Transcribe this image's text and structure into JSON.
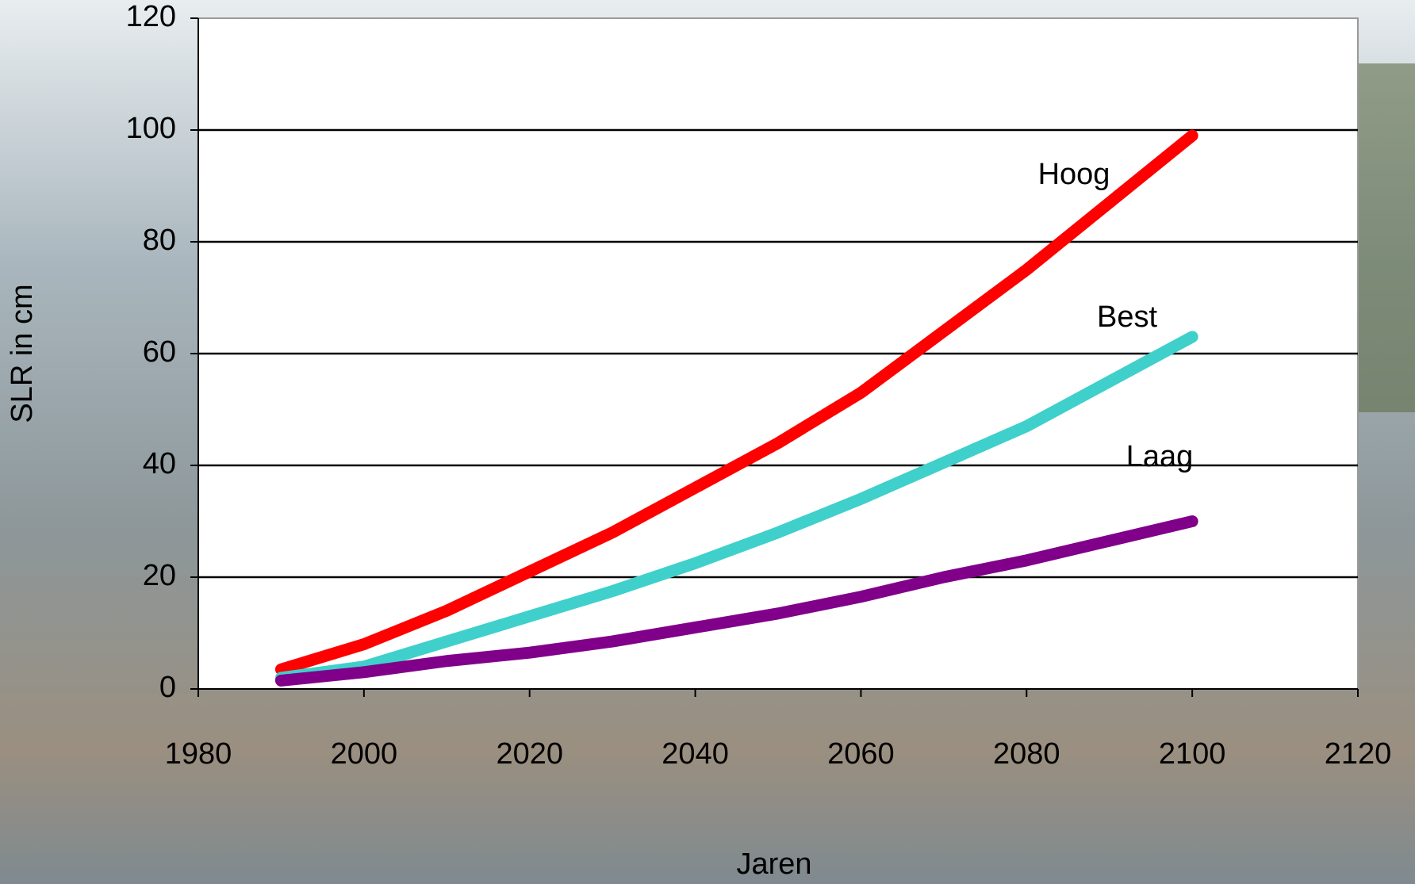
{
  "chart_data": {
    "type": "line",
    "x_label": "Jaren",
    "y_label": "SLR in cm",
    "x": [
      1990,
      2000,
      2010,
      2020,
      2030,
      2040,
      2050,
      2060,
      2070,
      2080,
      2090,
      2100
    ],
    "series": [
      {
        "name": "Hoog",
        "color": "#ff0000",
        "values": [
          3.5,
          8,
          14,
          21,
          28,
          36,
          44,
          53,
          64,
          75,
          87,
          99
        ]
      },
      {
        "name": "Best",
        "color": "#3fd0cb",
        "values": [
          2,
          4,
          8.5,
          13,
          17.5,
          22.5,
          28,
          34,
          40.5,
          47,
          55,
          63
        ]
      },
      {
        "name": "Laag",
        "color": "#80008a",
        "values": [
          1.5,
          3,
          5,
          6.5,
          8.5,
          11,
          13.5,
          16.5,
          20,
          23,
          26.5,
          30
        ]
      }
    ],
    "xlim": [
      1980,
      2120
    ],
    "xticks": [
      1980,
      2000,
      2020,
      2040,
      2060,
      2080,
      2100,
      2120
    ],
    "ylim": [
      0,
      120
    ],
    "yticks": [
      0,
      20,
      40,
      60,
      80,
      100,
      120
    ],
    "grid": true
  }
}
